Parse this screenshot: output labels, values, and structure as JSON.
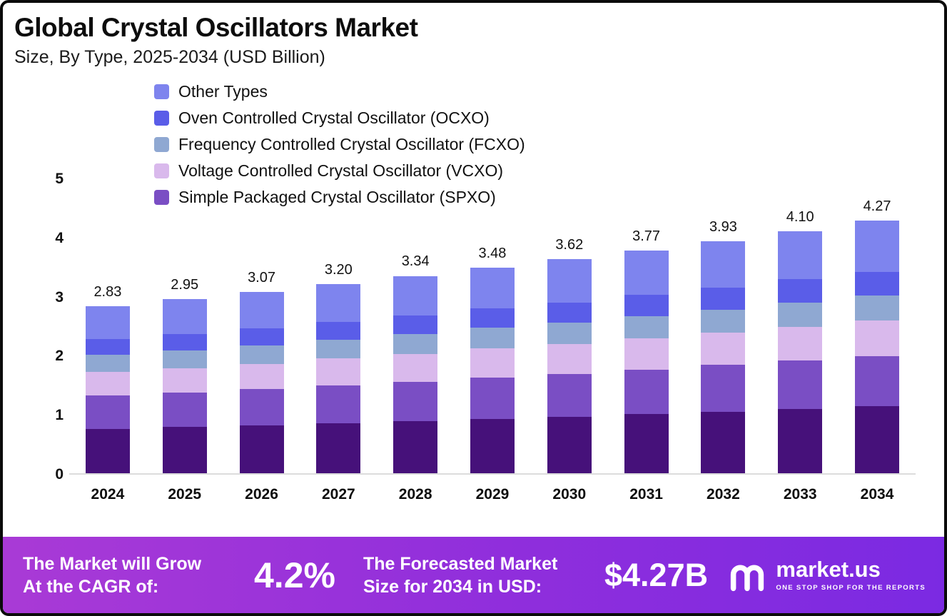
{
  "header": {
    "title": "Global Crystal Oscillators Market",
    "subtitle": "Size, By Type, 2025-2034 (USD Billion)"
  },
  "chart_data": {
    "type": "bar",
    "stacked": true,
    "title": "Global Crystal Oscillators Market",
    "subtitle": "Size, By Type, 2025-2034 (USD Billion)",
    "categories": [
      "2024",
      "2025",
      "2026",
      "2027",
      "2028",
      "2029",
      "2030",
      "2031",
      "2032",
      "2033",
      "2034"
    ],
    "totals": [
      2.83,
      2.95,
      3.07,
      3.2,
      3.34,
      3.48,
      3.62,
      3.77,
      3.93,
      4.1,
      4.27
    ],
    "total_labels": [
      "2.83",
      "2.95",
      "3.07",
      "3.20",
      "3.34",
      "3.48",
      "3.62",
      "3.77",
      "3.93",
      "4.10",
      "4.27"
    ],
    "ylim": [
      0,
      5
    ],
    "yticks": [
      0,
      1,
      2,
      3,
      4,
      5
    ],
    "grid": false,
    "legend_position": "top-left",
    "legend": [
      {
        "label": "Other Types",
        "color": "#7e84ee"
      },
      {
        "label": "Oven Controlled Crystal Oscillator (OCXO)",
        "color": "#5a5de8"
      },
      {
        "label": "Frequency Controlled Crystal Oscillator (FCXO)",
        "color": "#8fa8d2"
      },
      {
        "label": "Voltage Controlled Crystal Oscillator (VCXO)",
        "color": "#d9b9ec"
      },
      {
        "label": "Simple Packaged Crystal Oscillator (SPXO)",
        "color": "#7a4ec4"
      }
    ],
    "stack_order": "bottom_to_top",
    "series": [
      {
        "name": "Unlabeled segment (dark purple)",
        "color": "#46117a",
        "values": [
          0.75,
          0.78,
          0.81,
          0.85,
          0.88,
          0.92,
          0.96,
          1.0,
          1.04,
          1.09,
          1.13
        ]
      },
      {
        "name": "Simple Packaged Crystal Oscillator (SPXO)",
        "color": "#7a4ec4",
        "values": [
          0.57,
          0.59,
          0.61,
          0.64,
          0.67,
          0.7,
          0.72,
          0.75,
          0.79,
          0.82,
          0.85
        ]
      },
      {
        "name": "Voltage Controlled Crystal Oscillator (VCXO)",
        "color": "#d9b9ec",
        "values": [
          0.4,
          0.41,
          0.43,
          0.45,
          0.47,
          0.49,
          0.51,
          0.53,
          0.55,
          0.57,
          0.6
        ]
      },
      {
        "name": "Frequency Controlled Crystal Oscillator (FCXO)",
        "color": "#8fa8d2",
        "values": [
          0.28,
          0.3,
          0.31,
          0.32,
          0.33,
          0.35,
          0.36,
          0.38,
          0.39,
          0.41,
          0.43
        ]
      },
      {
        "name": "Oven Controlled Crystal Oscillator (OCXO)",
        "color": "#5a5de8",
        "values": [
          0.27,
          0.28,
          0.29,
          0.3,
          0.32,
          0.33,
          0.34,
          0.36,
          0.37,
          0.39,
          0.4
        ]
      },
      {
        "name": "Other Types",
        "color": "#7e84ee",
        "values": [
          0.56,
          0.59,
          0.62,
          0.64,
          0.67,
          0.69,
          0.73,
          0.75,
          0.79,
          0.82,
          0.86
        ]
      }
    ]
  },
  "footer": {
    "cagr_label_line1": "The Market will Grow",
    "cagr_label_line2": "At the CAGR of:",
    "cagr_value": "4.2%",
    "forecast_label_line1": "The Forecasted Market",
    "forecast_label_line2": "Size for 2034 in USD:",
    "forecast_value": "$4.27B",
    "brand": {
      "name": "market.us",
      "tagline": "ONE STOP SHOP FOR THE REPORTS"
    }
  }
}
